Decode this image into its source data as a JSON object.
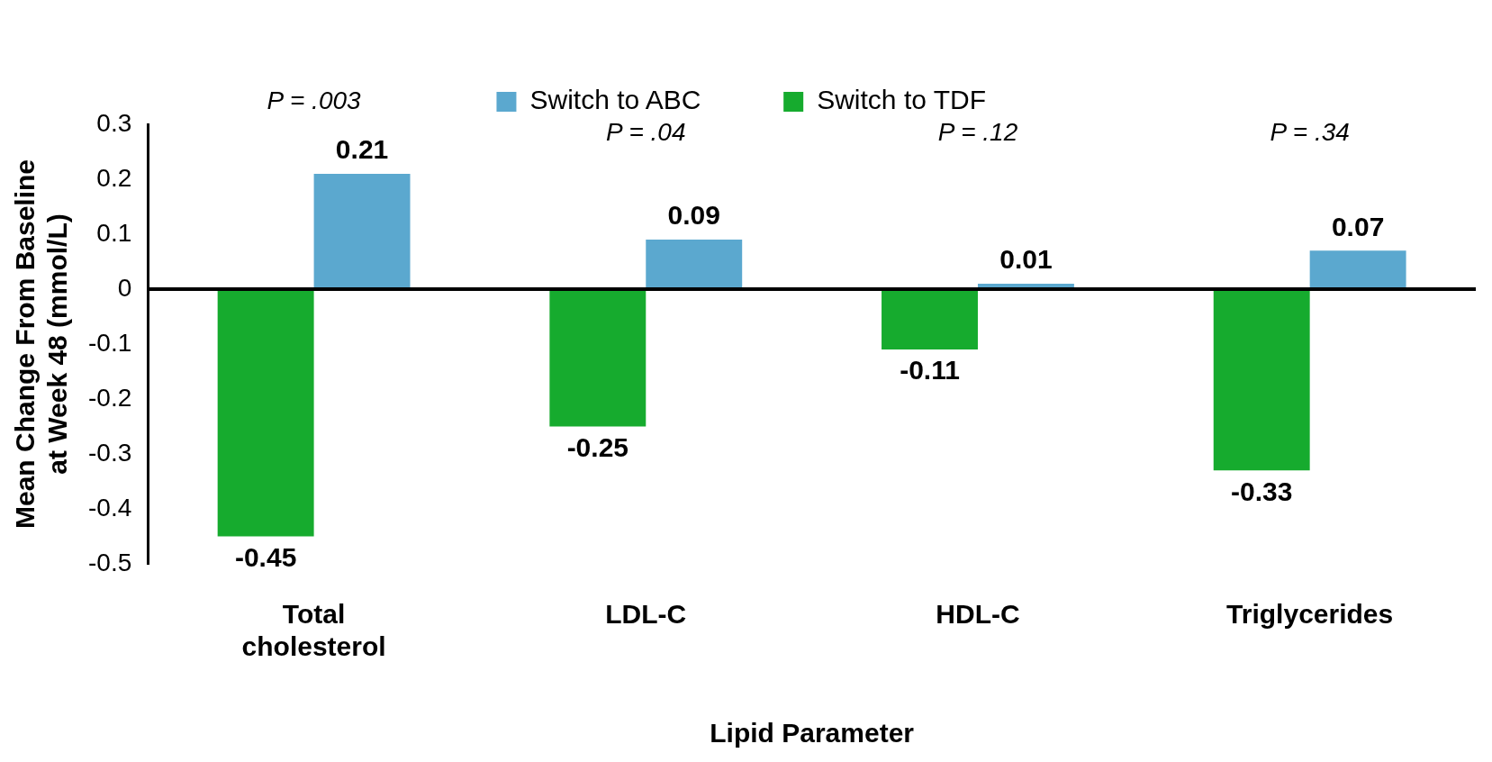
{
  "chart_data": {
    "type": "bar",
    "xlabel": "Lipid Parameter",
    "ylabel": "Mean Change From Baseline at Week 48 (mmol/L)",
    "categories": [
      "Total cholesterol",
      "LDL-C",
      "HDL-C",
      "Triglycerides"
    ],
    "series": [
      {
        "name": "Switch to TDF",
        "color": "#16ab2e",
        "values": [
          -0.45,
          -0.25,
          -0.11,
          -0.33
        ]
      },
      {
        "name": "Switch to ABC",
        "color": "#5ba8cf",
        "values": [
          0.21,
          0.09,
          0.01,
          0.07
        ]
      }
    ],
    "ylim": [
      -0.5,
      0.3
    ],
    "yticks": [
      -0.5,
      -0.4,
      -0.3,
      -0.2,
      -0.1,
      0,
      0.1,
      0.2,
      0.3
    ],
    "grid": false,
    "legend": "top",
    "data_labels": true,
    "ref_lines": [
      {
        "axis": "y",
        "value": 0,
        "color": "#000000"
      }
    ],
    "annotations": [
      "P = .003",
      "P = .04",
      "P = .12",
      "P = .34"
    ]
  }
}
